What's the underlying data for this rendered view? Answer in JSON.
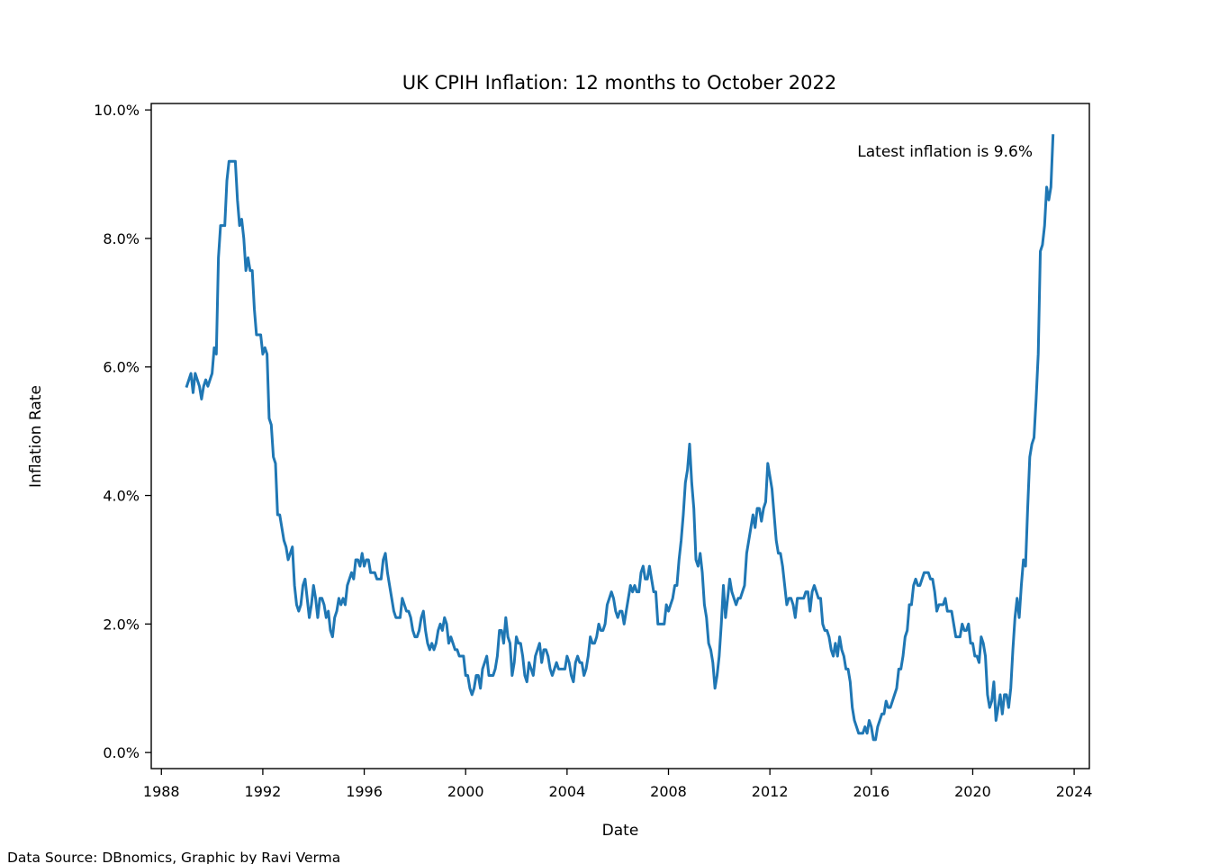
{
  "chart_data": {
    "type": "line",
    "title": "UK CPIH Inflation: 12 months to October 2022",
    "xlabel": "Date",
    "ylabel": "Inflation Rate",
    "annotation": "Latest inflation is 9.6%",
    "footer": "Data Source: DBnomics, Graphic by Ravi Verma",
    "x_ticks": [
      "1988",
      "1992",
      "1996",
      "2000",
      "2004",
      "2008",
      "2012",
      "2016",
      "2020",
      "2024"
    ],
    "y_ticks": [
      "0.0%",
      "2.0%",
      "4.0%",
      "6.0%",
      "8.0%",
      "10.0%"
    ],
    "xlim": [
      1987.6,
      2024.6
    ],
    "ylim": [
      -0.25,
      10.1
    ],
    "grid": false,
    "line_color": "#1f77b4",
    "series": [
      {
        "x_start": "1989-01",
        "frequency": "monthly",
        "values": [
          5.7,
          5.8,
          5.9,
          5.6,
          5.9,
          5.8,
          5.7,
          5.5,
          5.7,
          5.8,
          5.7,
          5.8,
          5.9,
          6.3,
          6.2,
          7.7,
          8.2,
          8.2,
          8.2,
          8.9,
          9.2,
          9.2,
          9.2,
          9.2,
          8.6,
          8.2,
          8.3,
          8.0,
          7.5,
          7.7,
          7.5,
          7.5,
          6.9,
          6.5,
          6.5,
          6.5,
          6.2,
          6.3,
          6.2,
          5.2,
          5.1,
          4.6,
          4.5,
          3.7,
          3.7,
          3.5,
          3.3,
          3.2,
          3.0,
          3.1,
          3.2,
          2.6,
          2.3,
          2.2,
          2.3,
          2.6,
          2.7,
          2.4,
          2.1,
          2.3,
          2.6,
          2.4,
          2.1,
          2.4,
          2.4,
          2.3,
          2.1,
          2.2,
          1.9,
          1.8,
          2.1,
          2.2,
          2.4,
          2.3,
          2.4,
          2.3,
          2.6,
          2.7,
          2.8,
          2.7,
          3.0,
          3.0,
          2.9,
          3.1,
          2.9,
          3.0,
          3.0,
          2.8,
          2.8,
          2.8,
          2.7,
          2.7,
          2.7,
          3.0,
          3.1,
          2.8,
          2.6,
          2.4,
          2.2,
          2.1,
          2.1,
          2.1,
          2.4,
          2.3,
          2.2,
          2.2,
          2.1,
          1.9,
          1.8,
          1.8,
          1.9,
          2.1,
          2.2,
          1.9,
          1.7,
          1.6,
          1.7,
          1.6,
          1.7,
          1.9,
          2.0,
          1.9,
          2.1,
          2.0,
          1.7,
          1.8,
          1.7,
          1.6,
          1.6,
          1.5,
          1.5,
          1.5,
          1.2,
          1.2,
          1.0,
          0.9,
          1.0,
          1.2,
          1.2,
          1.0,
          1.3,
          1.4,
          1.5,
          1.2,
          1.2,
          1.2,
          1.3,
          1.5,
          1.9,
          1.9,
          1.7,
          2.1,
          1.8,
          1.7,
          1.2,
          1.4,
          1.8,
          1.7,
          1.7,
          1.5,
          1.2,
          1.1,
          1.4,
          1.3,
          1.2,
          1.5,
          1.6,
          1.7,
          1.4,
          1.6,
          1.6,
          1.5,
          1.3,
          1.2,
          1.3,
          1.4,
          1.3,
          1.3,
          1.3,
          1.3,
          1.5,
          1.4,
          1.2,
          1.1,
          1.4,
          1.5,
          1.4,
          1.4,
          1.2,
          1.3,
          1.5,
          1.8,
          1.7,
          1.7,
          1.8,
          2.0,
          1.9,
          1.9,
          2.0,
          2.3,
          2.4,
          2.5,
          2.4,
          2.2,
          2.1,
          2.2,
          2.2,
          2.0,
          2.2,
          2.4,
          2.6,
          2.5,
          2.6,
          2.5,
          2.5,
          2.8,
          2.9,
          2.7,
          2.7,
          2.9,
          2.7,
          2.5,
          2.5,
          2.0,
          2.0,
          2.0,
          2.0,
          2.3,
          2.2,
          2.3,
          2.4,
          2.6,
          2.6,
          3.0,
          3.3,
          3.7,
          4.2,
          4.4,
          4.8,
          4.2,
          3.8,
          3.0,
          2.9,
          3.1,
          2.8,
          2.3,
          2.1,
          1.7,
          1.6,
          1.4,
          1.0,
          1.2,
          1.5,
          2.0,
          2.6,
          2.1,
          2.4,
          2.7,
          2.5,
          2.4,
          2.3,
          2.4,
          2.4,
          2.5,
          2.6,
          3.1,
          3.3,
          3.5,
          3.7,
          3.5,
          3.8,
          3.8,
          3.6,
          3.8,
          3.9,
          4.5,
          4.3,
          4.1,
          3.7,
          3.3,
          3.1,
          3.1,
          2.9,
          2.6,
          2.3,
          2.4,
          2.4,
          2.3,
          2.1,
          2.4,
          2.4,
          2.4,
          2.4,
          2.5,
          2.5,
          2.2,
          2.5,
          2.6,
          2.5,
          2.4,
          2.4,
          2.0,
          1.9,
          1.9,
          1.8,
          1.6,
          1.5,
          1.7,
          1.5,
          1.8,
          1.6,
          1.5,
          1.3,
          1.3,
          1.1,
          0.7,
          0.5,
          0.4,
          0.3,
          0.3,
          0.3,
          0.4,
          0.3,
          0.5,
          0.4,
          0.2,
          0.2,
          0.4,
          0.5,
          0.6,
          0.6,
          0.8,
          0.7,
          0.7,
          0.8,
          0.9,
          1.0,
          1.3,
          1.3,
          1.5,
          1.8,
          1.9,
          2.3,
          2.3,
          2.6,
          2.7,
          2.6,
          2.6,
          2.7,
          2.8,
          2.8,
          2.8,
          2.7,
          2.7,
          2.5,
          2.2,
          2.3,
          2.3,
          2.3,
          2.4,
          2.2,
          2.2,
          2.2,
          2.0,
          1.8,
          1.8,
          1.8,
          2.0,
          1.9,
          1.9,
          2.0,
          1.7,
          1.7,
          1.5,
          1.5,
          1.4,
          1.8,
          1.7,
          1.5,
          0.9,
          0.7,
          0.8,
          1.1,
          0.5,
          0.7,
          0.9,
          0.6,
          0.9,
          0.9,
          0.7,
          1.0,
          1.6,
          2.1,
          2.4,
          2.1,
          2.6,
          3.0,
          2.9,
          3.8,
          4.6,
          4.8,
          4.9,
          5.5,
          6.2,
          7.8,
          7.9,
          8.2,
          8.8,
          8.6,
          8.8,
          9.6
        ]
      }
    ]
  }
}
